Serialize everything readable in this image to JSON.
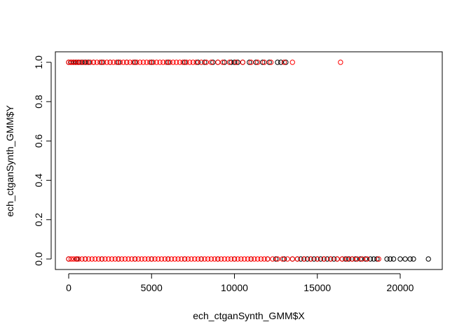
{
  "chart_data": {
    "type": "scatter",
    "title": "",
    "xlabel": "ech_ctganSynth_GMM$X",
    "ylabel": "ech_ctganSynth_GMM$Y",
    "xlim": [
      -800,
      22500
    ],
    "ylim": [
      -0.04,
      1.04
    ],
    "x_ticks": [
      0,
      5000,
      10000,
      15000,
      20000
    ],
    "x_tick_labels": [
      "0",
      "5000",
      "10000",
      "15000",
      "20000"
    ],
    "y_ticks": [
      0.0,
      0.2,
      0.4,
      0.6,
      0.8,
      1.0
    ],
    "y_tick_labels": [
      "0.0",
      "0.2",
      "0.4",
      "0.6",
      "0.8",
      "1.0"
    ],
    "grid": false,
    "legend": "none",
    "marker": "open-circle",
    "series": [
      {
        "color": "#000000",
        "points": [
          [
            0,
            1
          ],
          [
            150,
            1
          ],
          [
            300,
            1
          ],
          [
            450,
            1
          ],
          [
            600,
            1
          ],
          [
            800,
            1
          ],
          [
            1000,
            1
          ],
          [
            1200,
            1
          ],
          [
            1500,
            1
          ],
          [
            2000,
            1
          ],
          [
            2500,
            1
          ],
          [
            3000,
            1
          ],
          [
            3500,
            1
          ],
          [
            4000,
            1
          ],
          [
            5000,
            1
          ],
          [
            6000,
            1
          ],
          [
            7000,
            1
          ],
          [
            7800,
            1
          ],
          [
            8200,
            1
          ],
          [
            8700,
            1
          ],
          [
            9000,
            1
          ],
          [
            9400,
            1
          ],
          [
            9800,
            1
          ],
          [
            10000,
            1
          ],
          [
            10200,
            1
          ],
          [
            10500,
            1
          ],
          [
            10900,
            1
          ],
          [
            11300,
            1
          ],
          [
            11700,
            1
          ],
          [
            12100,
            1
          ],
          [
            12600,
            1
          ],
          [
            12800,
            1
          ],
          [
            13100,
            1
          ],
          [
            0,
            0
          ],
          [
            500,
            0
          ],
          [
            1000,
            0
          ],
          [
            2000,
            0
          ],
          [
            3000,
            0
          ],
          [
            4000,
            0
          ],
          [
            5000,
            0
          ],
          [
            6000,
            0
          ],
          [
            7000,
            0
          ],
          [
            8000,
            0
          ],
          [
            9000,
            0
          ],
          [
            10000,
            0
          ],
          [
            11000,
            0
          ],
          [
            12000,
            0
          ],
          [
            12500,
            0
          ],
          [
            13000,
            0
          ],
          [
            13500,
            0
          ],
          [
            13800,
            0
          ],
          [
            14000,
            0
          ],
          [
            14200,
            0
          ],
          [
            14400,
            0
          ],
          [
            14600,
            0
          ],
          [
            14800,
            0
          ],
          [
            15000,
            0
          ],
          [
            15200,
            0
          ],
          [
            15400,
            0
          ],
          [
            15600,
            0
          ],
          [
            15800,
            0
          ],
          [
            16000,
            0
          ],
          [
            16200,
            0
          ],
          [
            16500,
            0
          ],
          [
            16700,
            0
          ],
          [
            16900,
            0
          ],
          [
            17100,
            0
          ],
          [
            17300,
            0
          ],
          [
            17600,
            0
          ],
          [
            17900,
            0
          ],
          [
            18200,
            0
          ],
          [
            18400,
            0
          ],
          [
            18600,
            0
          ],
          [
            19200,
            0
          ],
          [
            19400,
            0
          ],
          [
            19600,
            0
          ],
          [
            20000,
            0
          ],
          [
            20300,
            0
          ],
          [
            20600,
            0
          ],
          [
            20800,
            0
          ],
          [
            21700,
            0
          ]
        ]
      },
      {
        "color": "#ff0000",
        "points": [
          [
            0,
            1
          ],
          [
            120,
            1
          ],
          [
            260,
            1
          ],
          [
            400,
            1
          ],
          [
            550,
            1
          ],
          [
            700,
            1
          ],
          [
            900,
            1
          ],
          [
            1100,
            1
          ],
          [
            1300,
            1
          ],
          [
            1500,
            1
          ],
          [
            1700,
            1
          ],
          [
            1900,
            1
          ],
          [
            2100,
            1
          ],
          [
            2300,
            1
          ],
          [
            2500,
            1
          ],
          [
            2700,
            1
          ],
          [
            2900,
            1
          ],
          [
            3100,
            1
          ],
          [
            3300,
            1
          ],
          [
            3500,
            1
          ],
          [
            3700,
            1
          ],
          [
            3900,
            1
          ],
          [
            4100,
            1
          ],
          [
            4300,
            1
          ],
          [
            4500,
            1
          ],
          [
            4700,
            1
          ],
          [
            4900,
            1
          ],
          [
            5100,
            1
          ],
          [
            5300,
            1
          ],
          [
            5500,
            1
          ],
          [
            5700,
            1
          ],
          [
            5900,
            1
          ],
          [
            6100,
            1
          ],
          [
            6300,
            1
          ],
          [
            6500,
            1
          ],
          [
            6700,
            1
          ],
          [
            6900,
            1
          ],
          [
            7100,
            1
          ],
          [
            7300,
            1
          ],
          [
            7500,
            1
          ],
          [
            7700,
            1
          ],
          [
            8000,
            1
          ],
          [
            8300,
            1
          ],
          [
            8600,
            1
          ],
          [
            9000,
            1
          ],
          [
            9300,
            1
          ],
          [
            9700,
            1
          ],
          [
            10100,
            1
          ],
          [
            10500,
            1
          ],
          [
            11000,
            1
          ],
          [
            11400,
            1
          ],
          [
            11800,
            1
          ],
          [
            12200,
            1
          ],
          [
            13000,
            1
          ],
          [
            13500,
            1
          ],
          [
            16400,
            1
          ],
          [
            0,
            0
          ],
          [
            150,
            0
          ],
          [
            300,
            0
          ],
          [
            450,
            0
          ],
          [
            600,
            0
          ],
          [
            800,
            0
          ],
          [
            1000,
            0
          ],
          [
            1200,
            0
          ],
          [
            1400,
            0
          ],
          [
            1600,
            0
          ],
          [
            1800,
            0
          ],
          [
            2000,
            0
          ],
          [
            2200,
            0
          ],
          [
            2400,
            0
          ],
          [
            2600,
            0
          ],
          [
            2800,
            0
          ],
          [
            3000,
            0
          ],
          [
            3200,
            0
          ],
          [
            3400,
            0
          ],
          [
            3600,
            0
          ],
          [
            3800,
            0
          ],
          [
            4000,
            0
          ],
          [
            4200,
            0
          ],
          [
            4400,
            0
          ],
          [
            4600,
            0
          ],
          [
            4800,
            0
          ],
          [
            5000,
            0
          ],
          [
            5200,
            0
          ],
          [
            5400,
            0
          ],
          [
            5600,
            0
          ],
          [
            5800,
            0
          ],
          [
            6000,
            0
          ],
          [
            6200,
            0
          ],
          [
            6400,
            0
          ],
          [
            6600,
            0
          ],
          [
            6800,
            0
          ],
          [
            7000,
            0
          ],
          [
            7200,
            0
          ],
          [
            7400,
            0
          ],
          [
            7600,
            0
          ],
          [
            7800,
            0
          ],
          [
            8000,
            0
          ],
          [
            8200,
            0
          ],
          [
            8400,
            0
          ],
          [
            8600,
            0
          ],
          [
            8800,
            0
          ],
          [
            9000,
            0
          ],
          [
            9200,
            0
          ],
          [
            9400,
            0
          ],
          [
            9600,
            0
          ],
          [
            9800,
            0
          ],
          [
            10000,
            0
          ],
          [
            10200,
            0
          ],
          [
            10400,
            0
          ],
          [
            10600,
            0
          ],
          [
            10800,
            0
          ],
          [
            11000,
            0
          ],
          [
            11200,
            0
          ],
          [
            11400,
            0
          ],
          [
            11600,
            0
          ],
          [
            11800,
            0
          ],
          [
            12000,
            0
          ],
          [
            12300,
            0
          ],
          [
            12600,
            0
          ],
          [
            12900,
            0
          ],
          [
            13200,
            0
          ],
          [
            13500,
            0
          ],
          [
            13800,
            0
          ],
          [
            14200,
            0
          ],
          [
            14600,
            0
          ],
          [
            15000,
            0
          ],
          [
            15400,
            0
          ],
          [
            15800,
            0
          ],
          [
            16200,
            0
          ],
          [
            16500,
            0
          ],
          [
            16800,
            0
          ],
          [
            17100,
            0
          ],
          [
            17400,
            0
          ],
          [
            17700,
            0
          ],
          [
            18000,
            0
          ],
          [
            18700,
            0
          ]
        ]
      }
    ]
  }
}
